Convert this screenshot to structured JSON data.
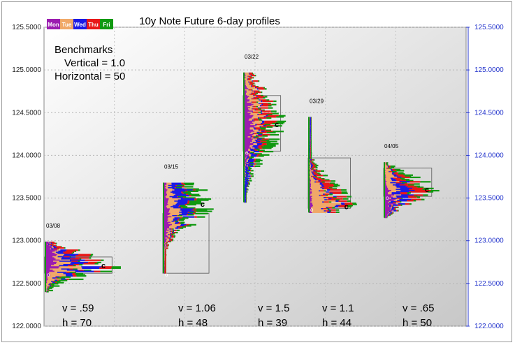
{
  "chart_data": {
    "type": "area",
    "title": "10y Note Future 6-day profiles",
    "ylim": [
      122.0,
      125.5
    ],
    "y_ticks": [
      "122.0000",
      "122.5000",
      "123.0000",
      "123.5000",
      "124.0000",
      "124.5000",
      "125.0000",
      "125.5000"
    ],
    "legend": {
      "placement": "top-left",
      "items": [
        {
          "label": "Mon",
          "color": "#9b1cb0"
        },
        {
          "label": "Tue",
          "color": "#f0a868"
        },
        {
          "label": "Wed",
          "color": "#1a1ae6"
        },
        {
          "label": "Thu",
          "color": "#e81818"
        },
        {
          "label": "Fri",
          "color": "#119911"
        }
      ]
    },
    "benchmarks": {
      "heading": "Benchmarks",
      "vertical": "Vertical = 1.0",
      "horizontal": "Horizontal = 50"
    },
    "profiles": [
      {
        "date": "03/08",
        "low": 122.4,
        "high": 122.99,
        "box_low": 122.62,
        "box_high": 122.81,
        "poc": 122.72,
        "width": 70,
        "v": "v = .59",
        "h": "h = 70"
      },
      {
        "date": "03/15",
        "low": 122.62,
        "high": 123.68,
        "box_low": 122.62,
        "box_high": 123.32,
        "poc": 123.44,
        "width": 48,
        "v": "v = 1.06",
        "h": "h = 48"
      },
      {
        "date": "03/22",
        "low": 123.45,
        "high": 124.97,
        "box_low": 124.05,
        "box_high": 124.7,
        "poc": 124.37,
        "width": 39,
        "v": "v = 1.5",
        "h": "h = 39"
      },
      {
        "date": "03/29",
        "low": 123.33,
        "high": 124.45,
        "box_low": 123.38,
        "box_high": 123.97,
        "poc": 123.41,
        "width": 44,
        "v": "v = 1.1",
        "h": "h = 44"
      },
      {
        "date": "04/05",
        "low": 123.27,
        "high": 123.92,
        "box_low": 123.52,
        "box_high": 123.85,
        "poc": 123.61,
        "width": 50,
        "v": "v = .65",
        "h": "h = 50"
      }
    ],
    "poc_marker": "c",
    "open_marker": "o",
    "grid": true
  }
}
